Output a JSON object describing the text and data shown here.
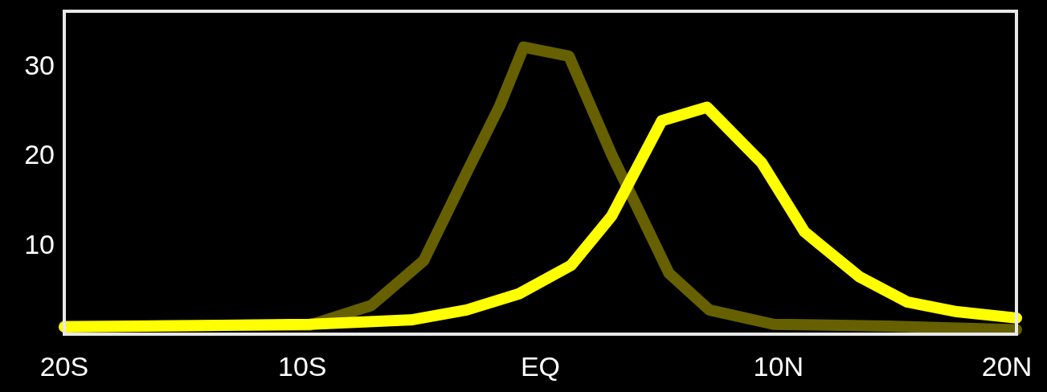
{
  "chart_data": {
    "type": "line",
    "xlim": [
      -20,
      20
    ],
    "ylim": [
      0,
      36
    ],
    "xticks": [
      {
        "value": -20,
        "label": "20S"
      },
      {
        "value": -10,
        "label": "10S"
      },
      {
        "value": 0,
        "label": "EQ"
      },
      {
        "value": 10,
        "label": "10N"
      },
      {
        "value": 20,
        "label": "20N"
      }
    ],
    "yticks": [
      10,
      20,
      30
    ],
    "grid": false,
    "legend": false,
    "marker": "none",
    "line_style": "solid",
    "series": [
      {
        "color": "#666000",
        "x": [
          -20,
          -9.7,
          -7.1,
          -4.9,
          -3.1,
          -1.7,
          -0.7,
          1.2,
          3.0,
          5.4,
          7.1,
          9.8,
          14.6,
          20
        ],
        "values": [
          0.9,
          1.0,
          3.2,
          8.2,
          18,
          25.5,
          32,
          31,
          20,
          6.8,
          2.7,
          1.1,
          0.9,
          0.5
        ]
      },
      {
        "color": "#ffff00",
        "x": [
          -20,
          -9.7,
          -5.4,
          -3.1,
          -0.9,
          1.3,
          3.0,
          5.1,
          7.0,
          9.3,
          11.1,
          13.4,
          15.4,
          17.5,
          20
        ],
        "values": [
          0.8,
          1.1,
          1.6,
          2.7,
          4.5,
          7.7,
          13.2,
          23.8,
          25.3,
          19.1,
          11.4,
          6.4,
          3.6,
          2.5,
          1.8
        ]
      }
    ]
  }
}
